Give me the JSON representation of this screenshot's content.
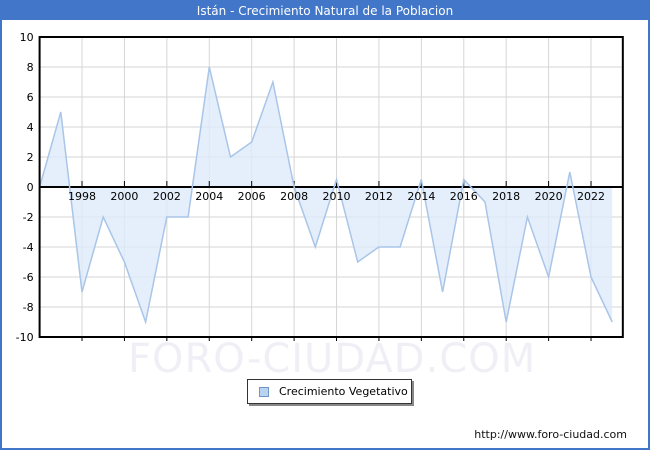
{
  "title_bar": {
    "title": "Istán - Crecimiento Natural de la Poblacion"
  },
  "legend": {
    "label": "Crecimiento Vegetativo"
  },
  "watermark": "FORO-CIUDAD.COM",
  "footer": {
    "url": "http://www.foro-ciudad.com"
  },
  "chart_data": {
    "type": "area",
    "title": "Istán - Crecimiento Natural de la Poblacion",
    "series_name": "Crecimiento Vegetativo",
    "x": [
      1996,
      1997,
      1998,
      1999,
      2000,
      2001,
      2002,
      2003,
      2004,
      2005,
      2006,
      2007,
      2008,
      2009,
      2010,
      2011,
      2012,
      2013,
      2014,
      2015,
      2016,
      2017,
      2018,
      2019,
      2020,
      2021,
      2022,
      2023
    ],
    "values": [
      0,
      5,
      -7,
      -2,
      -5,
      -9,
      -2,
      -2,
      8,
      2,
      3,
      7,
      0,
      -4,
      0.5,
      -5,
      -4,
      -4,
      0.5,
      -7,
      0.5,
      -1,
      -9,
      -2,
      -6,
      1,
      -6,
      -9
    ],
    "xticks": [
      "1998",
      "2000",
      "2002",
      "2004",
      "2006",
      "2008",
      "2010",
      "2012",
      "2014",
      "2016",
      "2018",
      "2020",
      "2022"
    ],
    "yticks": [
      "10",
      "8",
      "6",
      "4",
      "2",
      "0",
      "-2",
      "-4",
      "-6",
      "-8",
      "-10"
    ],
    "ylim": [
      -10,
      10
    ],
    "xlim": [
      1996,
      2023.5
    ],
    "grid": true,
    "legend_position": "bottom-center",
    "colors": {
      "accent_blue": "#4176c8",
      "line": "#a9c5e8",
      "fill": "#ddebfa",
      "grid": "#d6d6d6",
      "axis": "#000000",
      "watermark": "#f1eff6",
      "legend_marker_fill": "#b9d3f0",
      "legend_marker_border": "#7094c4"
    }
  }
}
